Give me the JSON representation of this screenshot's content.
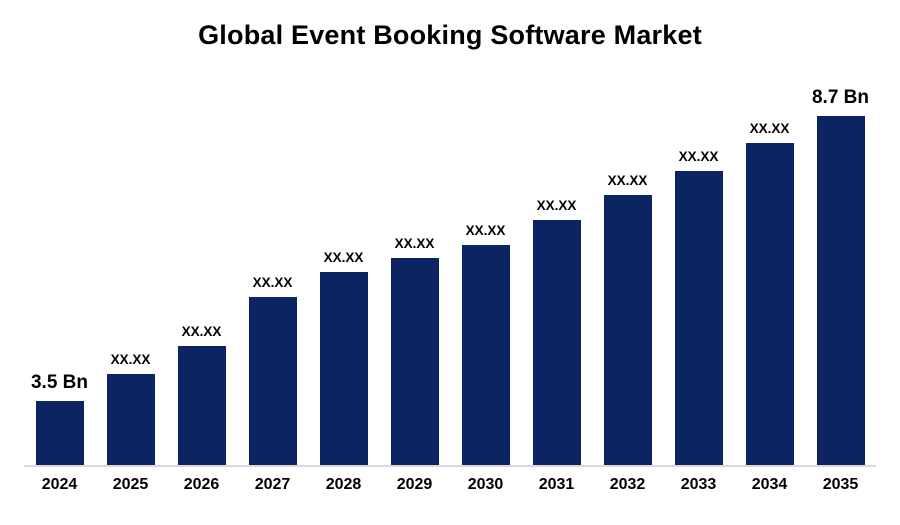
{
  "chart_data": {
    "type": "bar",
    "title": "Global Event Booking Software Market",
    "categories": [
      "2024",
      "2025",
      "2026",
      "2027",
      "2028",
      "2029",
      "2030",
      "2031",
      "2032",
      "2033",
      "2034",
      "2035"
    ],
    "values": [
      3.5,
      4.0,
      4.5,
      5.4,
      5.85,
      6.1,
      6.35,
      6.8,
      7.25,
      7.7,
      8.2,
      8.7
    ],
    "bar_labels": [
      "3.5 Bn",
      "XX.XX",
      "XX.XX",
      "XX.XX",
      "XX.XX",
      "XX.XX",
      "XX.XX",
      "XX.XX",
      "XX.XX",
      "XX.XX",
      "XX.XX",
      "8.7 Bn"
    ],
    "unit": "Bn",
    "ylim": [
      3.5,
      8.7
    ],
    "xlabel": "",
    "ylabel": "",
    "bar_color": "#0d2463",
    "axis_line_color": "#d9d9d9",
    "grid": false,
    "legend": false
  }
}
